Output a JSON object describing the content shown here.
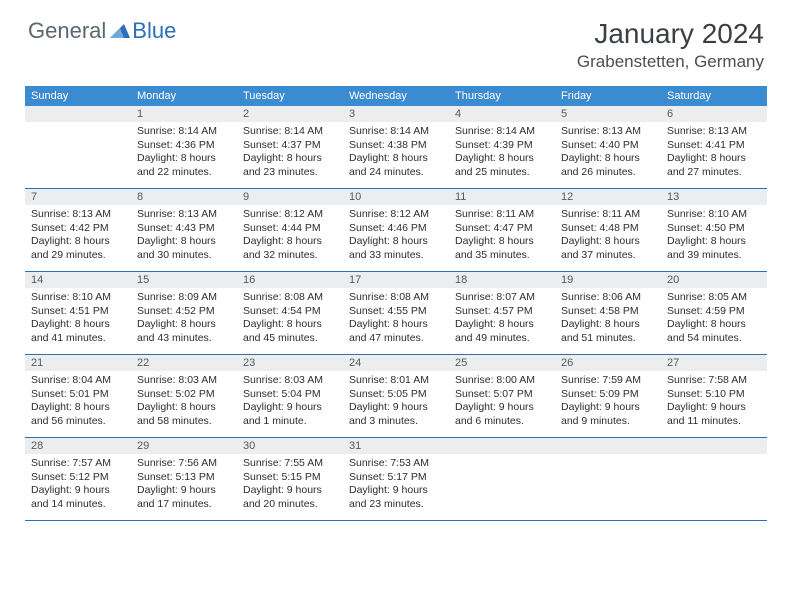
{
  "brand": {
    "general": "General",
    "blue": "Blue"
  },
  "title": "January 2024",
  "location": "Grabenstetten, Germany",
  "colors": {
    "header_bg": "#3b8bd0",
    "header_text": "#ffffff",
    "daynum_bg": "#ecedee",
    "daynum_text": "#555a5f",
    "border": "#2d6fb4",
    "body_text": "#2b2e31",
    "title_text": "#3a3f44",
    "logo_gray": "#5b6670",
    "logo_blue": "#2d6fb4"
  },
  "typography": {
    "title_fontsize": 28,
    "location_fontsize": 17,
    "dayheader_fontsize": 11,
    "daynum_fontsize": 11,
    "body_fontsize": 10.5
  },
  "day_headers": [
    "Sunday",
    "Monday",
    "Tuesday",
    "Wednesday",
    "Thursday",
    "Friday",
    "Saturday"
  ],
  "weeks": [
    [
      {
        "empty": true
      },
      {
        "n": "1",
        "sunrise": "Sunrise: 8:14 AM",
        "sunset": "Sunset: 4:36 PM",
        "daylight": "Daylight: 8 hours and 22 minutes."
      },
      {
        "n": "2",
        "sunrise": "Sunrise: 8:14 AM",
        "sunset": "Sunset: 4:37 PM",
        "daylight": "Daylight: 8 hours and 23 minutes."
      },
      {
        "n": "3",
        "sunrise": "Sunrise: 8:14 AM",
        "sunset": "Sunset: 4:38 PM",
        "daylight": "Daylight: 8 hours and 24 minutes."
      },
      {
        "n": "4",
        "sunrise": "Sunrise: 8:14 AM",
        "sunset": "Sunset: 4:39 PM",
        "daylight": "Daylight: 8 hours and 25 minutes."
      },
      {
        "n": "5",
        "sunrise": "Sunrise: 8:13 AM",
        "sunset": "Sunset: 4:40 PM",
        "daylight": "Daylight: 8 hours and 26 minutes."
      },
      {
        "n": "6",
        "sunrise": "Sunrise: 8:13 AM",
        "sunset": "Sunset: 4:41 PM",
        "daylight": "Daylight: 8 hours and 27 minutes."
      }
    ],
    [
      {
        "n": "7",
        "sunrise": "Sunrise: 8:13 AM",
        "sunset": "Sunset: 4:42 PM",
        "daylight": "Daylight: 8 hours and 29 minutes."
      },
      {
        "n": "8",
        "sunrise": "Sunrise: 8:13 AM",
        "sunset": "Sunset: 4:43 PM",
        "daylight": "Daylight: 8 hours and 30 minutes."
      },
      {
        "n": "9",
        "sunrise": "Sunrise: 8:12 AM",
        "sunset": "Sunset: 4:44 PM",
        "daylight": "Daylight: 8 hours and 32 minutes."
      },
      {
        "n": "10",
        "sunrise": "Sunrise: 8:12 AM",
        "sunset": "Sunset: 4:46 PM",
        "daylight": "Daylight: 8 hours and 33 minutes."
      },
      {
        "n": "11",
        "sunrise": "Sunrise: 8:11 AM",
        "sunset": "Sunset: 4:47 PM",
        "daylight": "Daylight: 8 hours and 35 minutes."
      },
      {
        "n": "12",
        "sunrise": "Sunrise: 8:11 AM",
        "sunset": "Sunset: 4:48 PM",
        "daylight": "Daylight: 8 hours and 37 minutes."
      },
      {
        "n": "13",
        "sunrise": "Sunrise: 8:10 AM",
        "sunset": "Sunset: 4:50 PM",
        "daylight": "Daylight: 8 hours and 39 minutes."
      }
    ],
    [
      {
        "n": "14",
        "sunrise": "Sunrise: 8:10 AM",
        "sunset": "Sunset: 4:51 PM",
        "daylight": "Daylight: 8 hours and 41 minutes."
      },
      {
        "n": "15",
        "sunrise": "Sunrise: 8:09 AM",
        "sunset": "Sunset: 4:52 PM",
        "daylight": "Daylight: 8 hours and 43 minutes."
      },
      {
        "n": "16",
        "sunrise": "Sunrise: 8:08 AM",
        "sunset": "Sunset: 4:54 PM",
        "daylight": "Daylight: 8 hours and 45 minutes."
      },
      {
        "n": "17",
        "sunrise": "Sunrise: 8:08 AM",
        "sunset": "Sunset: 4:55 PM",
        "daylight": "Daylight: 8 hours and 47 minutes."
      },
      {
        "n": "18",
        "sunrise": "Sunrise: 8:07 AM",
        "sunset": "Sunset: 4:57 PM",
        "daylight": "Daylight: 8 hours and 49 minutes."
      },
      {
        "n": "19",
        "sunrise": "Sunrise: 8:06 AM",
        "sunset": "Sunset: 4:58 PM",
        "daylight": "Daylight: 8 hours and 51 minutes."
      },
      {
        "n": "20",
        "sunrise": "Sunrise: 8:05 AM",
        "sunset": "Sunset: 4:59 PM",
        "daylight": "Daylight: 8 hours and 54 minutes."
      }
    ],
    [
      {
        "n": "21",
        "sunrise": "Sunrise: 8:04 AM",
        "sunset": "Sunset: 5:01 PM",
        "daylight": "Daylight: 8 hours and 56 minutes."
      },
      {
        "n": "22",
        "sunrise": "Sunrise: 8:03 AM",
        "sunset": "Sunset: 5:02 PM",
        "daylight": "Daylight: 8 hours and 58 minutes."
      },
      {
        "n": "23",
        "sunrise": "Sunrise: 8:03 AM",
        "sunset": "Sunset: 5:04 PM",
        "daylight": "Daylight: 9 hours and 1 minute."
      },
      {
        "n": "24",
        "sunrise": "Sunrise: 8:01 AM",
        "sunset": "Sunset: 5:05 PM",
        "daylight": "Daylight: 9 hours and 3 minutes."
      },
      {
        "n": "25",
        "sunrise": "Sunrise: 8:00 AM",
        "sunset": "Sunset: 5:07 PM",
        "daylight": "Daylight: 9 hours and 6 minutes."
      },
      {
        "n": "26",
        "sunrise": "Sunrise: 7:59 AM",
        "sunset": "Sunset: 5:09 PM",
        "daylight": "Daylight: 9 hours and 9 minutes."
      },
      {
        "n": "27",
        "sunrise": "Sunrise: 7:58 AM",
        "sunset": "Sunset: 5:10 PM",
        "daylight": "Daylight: 9 hours and 11 minutes."
      }
    ],
    [
      {
        "n": "28",
        "sunrise": "Sunrise: 7:57 AM",
        "sunset": "Sunset: 5:12 PM",
        "daylight": "Daylight: 9 hours and 14 minutes."
      },
      {
        "n": "29",
        "sunrise": "Sunrise: 7:56 AM",
        "sunset": "Sunset: 5:13 PM",
        "daylight": "Daylight: 9 hours and 17 minutes."
      },
      {
        "n": "30",
        "sunrise": "Sunrise: 7:55 AM",
        "sunset": "Sunset: 5:15 PM",
        "daylight": "Daylight: 9 hours and 20 minutes."
      },
      {
        "n": "31",
        "sunrise": "Sunrise: 7:53 AM",
        "sunset": "Sunset: 5:17 PM",
        "daylight": "Daylight: 9 hours and 23 minutes."
      },
      {
        "empty": true
      },
      {
        "empty": true
      },
      {
        "empty": true
      }
    ]
  ]
}
